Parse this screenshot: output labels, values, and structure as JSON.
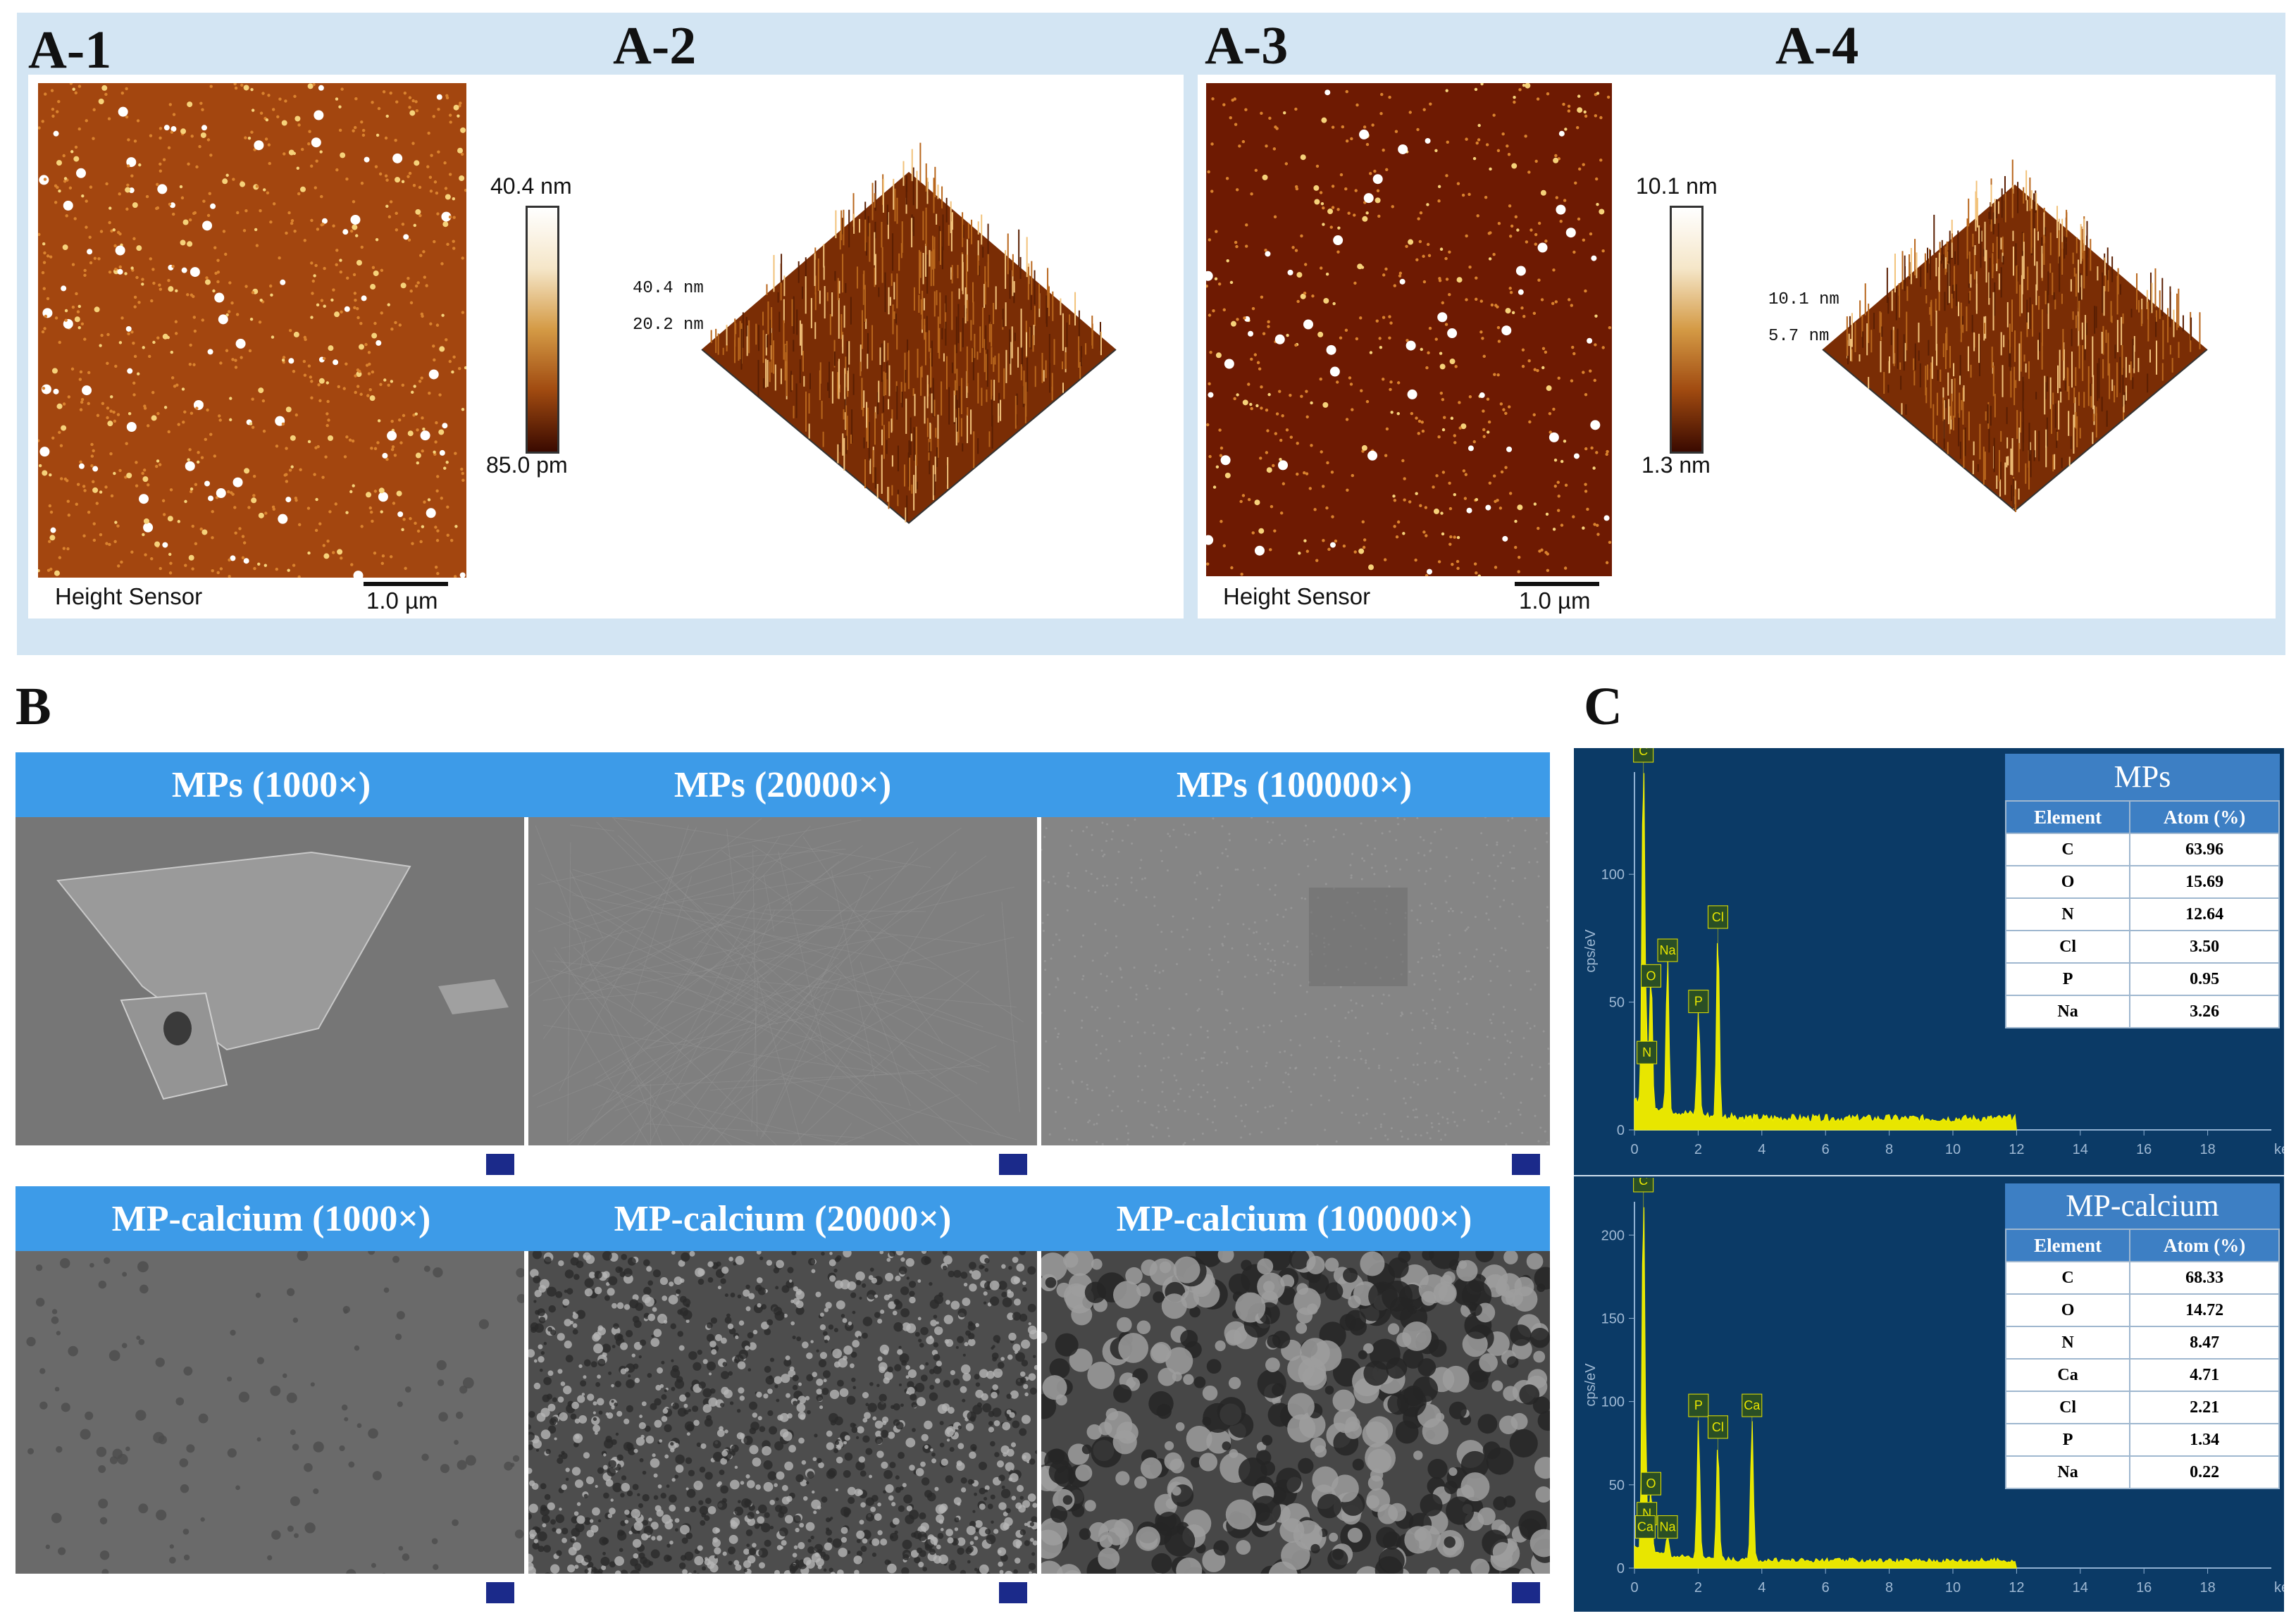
{
  "panel_labels": {
    "a1": "A-1",
    "a2": "A-2",
    "a3": "A-3",
    "a4": "A-4",
    "b": "B",
    "c": "C"
  },
  "afm": {
    "left": {
      "cbar_top": "40.4 nm",
      "cbar_bottom": "85.0 pm",
      "sensor": "Height Sensor",
      "scale": "1.0 µm",
      "z_top": "40.4 nm",
      "z_mid": "20.2 nm"
    },
    "right": {
      "cbar_top": "10.1 nm",
      "cbar_bottom": "1.3 nm",
      "sensor": "Height Sensor",
      "scale": "1.0 µm",
      "z_top": "10.1 nm",
      "z_mid": "5.7 nm"
    },
    "axis_unit": "5 um",
    "colors": {
      "dark": "#6a1c02",
      "mid": "#a4420f",
      "bright": "#ffffff"
    }
  },
  "sem": {
    "top_row": [
      "MPs (1000×)",
      "MPs (20000×)",
      "MPs (100000×)"
    ],
    "bottom_row": [
      "MP-calcium (1000×)",
      "MP-calcium (20000×)",
      "MP-calcium (100000×)"
    ],
    "header_color": "#3d9be8"
  },
  "eds": {
    "ylabel": "cps/eV",
    "xunit": "keV",
    "x_ticks": [
      "0",
      "2",
      "4",
      "6",
      "8",
      "10",
      "12",
      "14",
      "16",
      "18"
    ],
    "spectra": [
      {
        "title": "MPs",
        "y_ticks": [
          "0",
          "50",
          "100"
        ],
        "col_element": "Element",
        "col_atom": "Atom (%)",
        "rows": [
          [
            "C",
            "63.96"
          ],
          [
            "O",
            "15.69"
          ],
          [
            "N",
            "12.64"
          ],
          [
            "Cl",
            "3.50"
          ],
          [
            "P",
            "0.95"
          ],
          [
            "Na",
            "3.26"
          ]
        ],
        "peak_labels": [
          "C",
          "O",
          "Na",
          "N",
          "P",
          "Cl"
        ]
      },
      {
        "title": "MP-calcium",
        "y_ticks": [
          "0",
          "50",
          "100",
          "150",
          "200"
        ],
        "col_element": "Element",
        "col_atom": "Atom (%)",
        "rows": [
          [
            "C",
            "68.33"
          ],
          [
            "O",
            "14.72"
          ],
          [
            "N",
            "8.47"
          ],
          [
            "Ca",
            "4.71"
          ],
          [
            "Cl",
            "2.21"
          ],
          [
            "P",
            "1.34"
          ],
          [
            "Na",
            "0.22"
          ]
        ],
        "peak_labels": [
          "C",
          "O",
          "N",
          "Ca",
          "Na",
          "P",
          "Cl",
          "Ca"
        ]
      }
    ]
  }
}
